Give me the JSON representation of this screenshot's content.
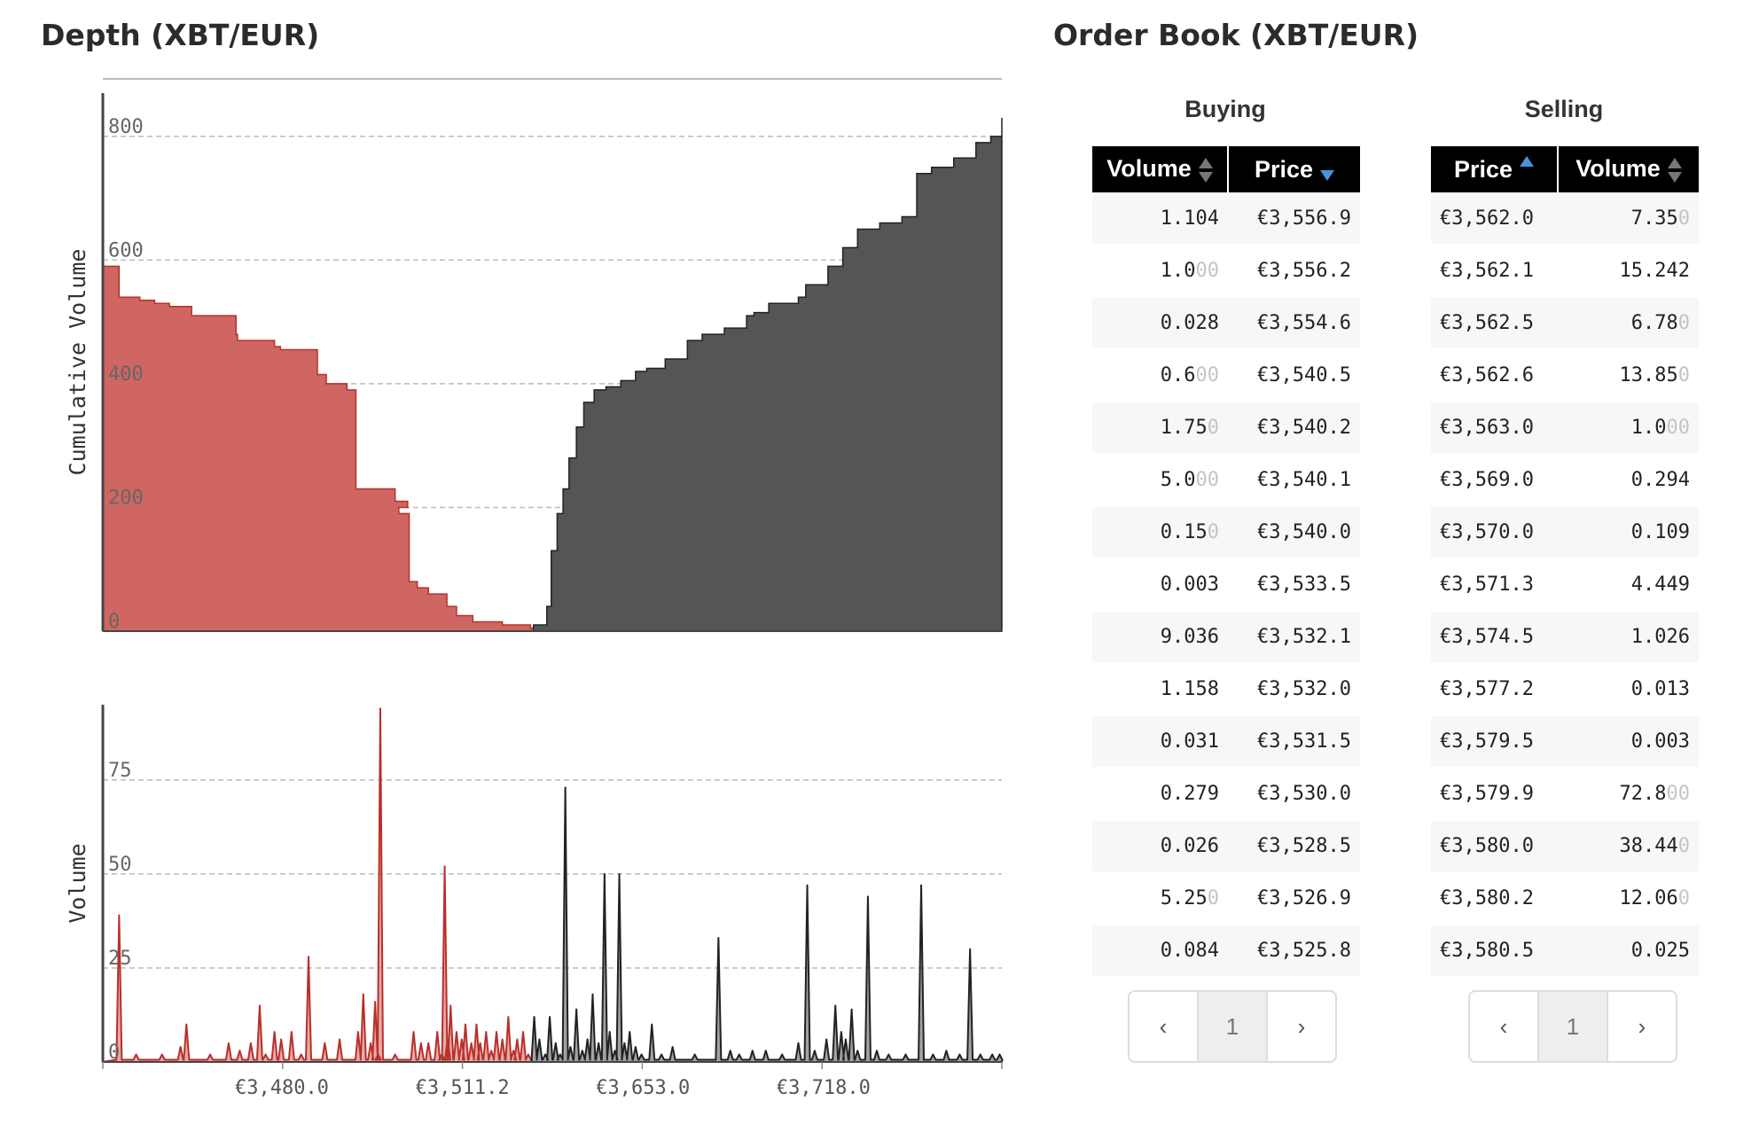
{
  "depth_title": "Depth (XBT/EUR)",
  "book_title": "Order Book (XBT/EUR)",
  "colors": {
    "bid": "#cf6661",
    "bid_line": "#b92f2a",
    "ask": "#555555",
    "ask_line": "#222222"
  },
  "chart_data": [
    {
      "type": "area",
      "ylabel": "Cumulative Volume",
      "ylim": [
        0,
        870
      ],
      "yticks": [
        0,
        200,
        400,
        600,
        800
      ],
      "grid": true,
      "series": [
        {
          "name": "bids",
          "x": [
            0,
            1,
            22,
            50,
            70,
            90,
            120,
            180,
            182,
            232,
            240,
            290,
            302,
            330,
            342,
            395,
            412,
            400,
            414,
            425,
            440,
            465,
            478,
            500,
            540,
            578,
            580
          ],
          "y": [
            590,
            590,
            540,
            535,
            530,
            525,
            510,
            480,
            470,
            460,
            455,
            415,
            400,
            390,
            230,
            210,
            200,
            190,
            80,
            70,
            60,
            40,
            25,
            15,
            10,
            5,
            0
          ]
        },
        {
          "name": "asks",
          "x": [
            580,
            582,
            600,
            606,
            614,
            622,
            630,
            640,
            650,
            664,
            680,
            700,
            720,
            735,
            760,
            790,
            810,
            840,
            870,
            880,
            900,
            940,
            950,
            980,
            1000,
            1020,
            1050,
            1080,
            1100,
            1120,
            1150,
            1180,
            1200,
            1215
          ],
          "y": [
            0,
            10,
            40,
            130,
            190,
            230,
            280,
            330,
            370,
            390,
            395,
            405,
            420,
            425,
            440,
            470,
            480,
            490,
            510,
            515,
            530,
            540,
            560,
            590,
            620,
            650,
            660,
            670,
            740,
            750,
            765,
            790,
            800,
            830
          ]
        }
      ]
    },
    {
      "type": "area",
      "ylabel": "Volume",
      "ylim": [
        0,
        95
      ],
      "yticks": [
        0,
        25,
        50,
        75
      ],
      "x_ticks": [
        {
          "label": "€3,480.0",
          "x": 242
        },
        {
          "label": "€3,511.2",
          "x": 486
        },
        {
          "label": "€3,653.0",
          "x": 730
        },
        {
          "label": "€3,718.0",
          "x": 974
        }
      ],
      "grid": true,
      "series": [
        {
          "name": "bids",
          "spikes": [
            [
              22,
              39
            ],
            [
              45,
              2
            ],
            [
              80,
              2
            ],
            [
              105,
              4
            ],
            [
              113,
              10
            ],
            [
              145,
              2
            ],
            [
              170,
              5
            ],
            [
              185,
              3
            ],
            [
              200,
              5
            ],
            [
              212,
              15
            ],
            [
              220,
              2
            ],
            [
              232,
              8
            ],
            [
              241,
              6
            ],
            [
              255,
              8
            ],
            [
              268,
              2
            ],
            [
              278,
              28
            ],
            [
              300,
              5
            ],
            [
              320,
              6
            ],
            [
              345,
              8
            ],
            [
              352,
              18
            ],
            [
              362,
              5
            ],
            [
              368,
              16
            ],
            [
              372,
              2
            ],
            [
              375,
              94
            ],
            [
              395,
              2
            ],
            [
              420,
              8
            ],
            [
              430,
              5
            ],
            [
              440,
              5
            ],
            [
              452,
              8
            ],
            [
              458,
              2
            ],
            [
              462,
              52
            ],
            [
              466,
              6
            ],
            [
              470,
              15
            ],
            [
              478,
              8
            ],
            [
              485,
              6
            ],
            [
              490,
              10
            ],
            [
              498,
              5
            ],
            [
              505,
              10
            ],
            [
              510,
              5
            ],
            [
              518,
              8
            ],
            [
              525,
              3
            ],
            [
              532,
              8
            ],
            [
              540,
              6
            ],
            [
              548,
              12
            ],
            [
              555,
              3
            ],
            [
              560,
              6
            ],
            [
              568,
              8
            ],
            [
              575,
              2
            ]
          ]
        },
        {
          "name": "asks",
          "spikes": [
            [
              583,
              12
            ],
            [
              590,
              6
            ],
            [
              598,
              2
            ],
            [
              604,
              12
            ],
            [
              612,
              5
            ],
            [
              618,
              2
            ],
            [
              625,
              73
            ],
            [
              632,
              4
            ],
            [
              640,
              14
            ],
            [
              648,
              3
            ],
            [
              655,
              6
            ],
            [
              662,
              18
            ],
            [
              670,
              5
            ],
            [
              678,
              50
            ],
            [
              685,
              8
            ],
            [
              692,
              3
            ],
            [
              698,
              50
            ],
            [
              705,
              5
            ],
            [
              712,
              8
            ],
            [
              720,
              4
            ],
            [
              728,
              2
            ],
            [
              742,
              10
            ],
            [
              755,
              2
            ],
            [
              770,
              4
            ],
            [
              800,
              2
            ],
            [
              832,
              33
            ],
            [
              848,
              3
            ],
            [
              860,
              2
            ],
            [
              878,
              3
            ],
            [
              896,
              3
            ],
            [
              918,
              2
            ],
            [
              940,
              5
            ],
            [
              952,
              47
            ],
            [
              962,
              3
            ],
            [
              978,
              6
            ],
            [
              990,
              15
            ],
            [
              998,
              8
            ],
            [
              1004,
              6
            ],
            [
              1012,
              14
            ],
            [
              1020,
              3
            ],
            [
              1034,
              44
            ],
            [
              1046,
              3
            ],
            [
              1062,
              2
            ],
            [
              1085,
              2
            ],
            [
              1106,
              47
            ],
            [
              1122,
              2
            ],
            [
              1140,
              3
            ],
            [
              1158,
              2
            ],
            [
              1172,
              30
            ],
            [
              1186,
              2
            ],
            [
              1202,
              2
            ],
            [
              1212,
              2
            ]
          ]
        }
      ]
    }
  ],
  "order_book": {
    "buying": {
      "heading": "Buying",
      "columns": [
        "Volume",
        "Price"
      ],
      "rows": [
        {
          "vol": "1.104",
          "vol_zeros": "",
          "price": "€3,556.9"
        },
        {
          "vol": "1.0",
          "vol_zeros": "00",
          "price": "€3,556.2"
        },
        {
          "vol": "0.028",
          "vol_zeros": "",
          "price": "€3,554.6"
        },
        {
          "vol": "0.6",
          "vol_zeros": "00",
          "price": "€3,540.5"
        },
        {
          "vol": "1.75",
          "vol_zeros": "0",
          "price": "€3,540.2"
        },
        {
          "vol": "5.0",
          "vol_zeros": "00",
          "price": "€3,540.1"
        },
        {
          "vol": "0.15",
          "vol_zeros": "0",
          "price": "€3,540.0"
        },
        {
          "vol": "0.003",
          "vol_zeros": "",
          "price": "€3,533.5"
        },
        {
          "vol": "9.036",
          "vol_zeros": "",
          "price": "€3,532.1"
        },
        {
          "vol": "1.158",
          "vol_zeros": "",
          "price": "€3,532.0"
        },
        {
          "vol": "0.031",
          "vol_zeros": "",
          "price": "€3,531.5"
        },
        {
          "vol": "0.279",
          "vol_zeros": "",
          "price": "€3,530.0"
        },
        {
          "vol": "0.026",
          "vol_zeros": "",
          "price": "€3,528.5"
        },
        {
          "vol": "5.25",
          "vol_zeros": "0",
          "price": "€3,526.9"
        },
        {
          "vol": "0.084",
          "vol_zeros": "",
          "price": "€3,525.8"
        }
      ],
      "pager": {
        "prev": "‹",
        "page": "1",
        "next": "›"
      }
    },
    "selling": {
      "heading": "Selling",
      "columns": [
        "Price",
        "Volume"
      ],
      "rows": [
        {
          "price": "€3,562.0",
          "vol": "7.35",
          "vol_zeros": "0"
        },
        {
          "price": "€3,562.1",
          "vol": "15.242",
          "vol_zeros": ""
        },
        {
          "price": "€3,562.5",
          "vol": "6.78",
          "vol_zeros": "0"
        },
        {
          "price": "€3,562.6",
          "vol": "13.85",
          "vol_zeros": "0"
        },
        {
          "price": "€3,563.0",
          "vol": "1.0",
          "vol_zeros": "00"
        },
        {
          "price": "€3,569.0",
          "vol": "0.294",
          "vol_zeros": ""
        },
        {
          "price": "€3,570.0",
          "vol": "0.109",
          "vol_zeros": ""
        },
        {
          "price": "€3,571.3",
          "vol": "4.449",
          "vol_zeros": ""
        },
        {
          "price": "€3,574.5",
          "vol": "1.026",
          "vol_zeros": ""
        },
        {
          "price": "€3,577.2",
          "vol": "0.013",
          "vol_zeros": ""
        },
        {
          "price": "€3,579.5",
          "vol": "0.003",
          "vol_zeros": ""
        },
        {
          "price": "€3,579.9",
          "vol": "72.8",
          "vol_zeros": "00"
        },
        {
          "price": "€3,580.0",
          "vol": "38.44",
          "vol_zeros": "0"
        },
        {
          "price": "€3,580.2",
          "vol": "12.06",
          "vol_zeros": "0"
        },
        {
          "price": "€3,580.5",
          "vol": "0.025",
          "vol_zeros": ""
        }
      ],
      "pager": {
        "prev": "‹",
        "page": "1",
        "next": "›"
      }
    }
  }
}
